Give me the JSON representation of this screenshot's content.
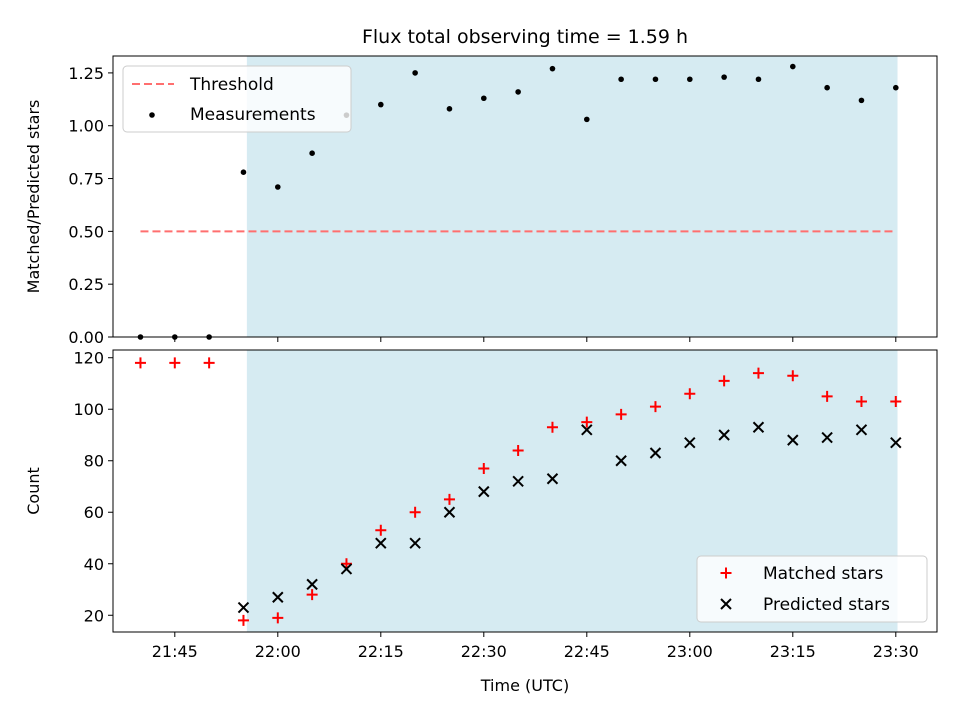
{
  "title": "Flux total observing time = 1.59 h",
  "colors": {
    "shade": "#add8e6",
    "threshold": "#ff6f6f",
    "matched": "#ff0000",
    "predicted": "#000000",
    "measurement": "#000000"
  },
  "chart_data": [
    {
      "type": "scatter",
      "ylabel": "Matched/Predicted stars",
      "ylim": [
        0,
        1.33
      ],
      "yticks": [
        "0.00",
        "0.25",
        "0.50",
        "0.75",
        "1.00",
        "1.25"
      ],
      "grid": false,
      "legend": {
        "placement": "top-left",
        "entries": [
          "Threshold",
          "Measurements"
        ]
      },
      "shaded_span": [
        "21:55:30",
        "23:30:15"
      ],
      "threshold": {
        "name": "Threshold",
        "value": 0.5,
        "x_range": [
          "21:40",
          "23:30"
        ]
      },
      "series": [
        {
          "name": "Measurements",
          "x": [
            "21:40",
            "21:45",
            "21:50",
            "21:55",
            "22:00",
            "22:05",
            "22:10",
            "22:15",
            "22:20",
            "22:25",
            "22:30",
            "22:35",
            "22:40",
            "22:45",
            "22:50",
            "22:55",
            "23:00",
            "23:05",
            "23:10",
            "23:15",
            "23:20",
            "23:25",
            "23:30"
          ],
          "y": [
            0.0,
            0.0,
            0.0,
            0.78,
            0.71,
            0.87,
            1.05,
            1.1,
            1.25,
            1.08,
            1.13,
            1.16,
            1.27,
            1.03,
            1.22,
            1.22,
            1.22,
            1.23,
            1.22,
            1.28,
            1.18,
            1.12,
            1.18
          ]
        }
      ]
    },
    {
      "type": "scatter",
      "ylabel": "Count",
      "xlabel": "Time (UTC)",
      "xticks": [
        "21:45",
        "22:00",
        "22:15",
        "22:30",
        "22:45",
        "23:00",
        "23:15",
        "23:30"
      ],
      "xlim": [
        "21:36",
        "23:36"
      ],
      "ylim": [
        13.5,
        123
      ],
      "yticks": [
        "20",
        "40",
        "60",
        "80",
        "100",
        "120"
      ],
      "grid": false,
      "legend": {
        "placement": "bottom-right",
        "entries": [
          "Matched stars",
          "Predicted stars"
        ]
      },
      "shaded_span": [
        "21:55:30",
        "23:30:15"
      ],
      "series": [
        {
          "name": "Matched stars",
          "x": [
            "21:40",
            "21:45",
            "21:50",
            "21:55",
            "22:00",
            "22:05",
            "22:10",
            "22:15",
            "22:20",
            "22:25",
            "22:30",
            "22:35",
            "22:40",
            "22:45",
            "22:50",
            "22:55",
            "23:00",
            "23:05",
            "23:10",
            "23:15",
            "23:20",
            "23:25",
            "23:30"
          ],
          "y": [
            118,
            118,
            118,
            18,
            19,
            28,
            40,
            53,
            60,
            65,
            77,
            84,
            93,
            95,
            98,
            101,
            106,
            111,
            114,
            113,
            105,
            103,
            103
          ]
        },
        {
          "name": "Predicted stars",
          "x": [
            "21:55",
            "22:00",
            "22:05",
            "22:10",
            "22:15",
            "22:20",
            "22:25",
            "22:30",
            "22:35",
            "22:40",
            "22:45",
            "22:50",
            "22:55",
            "23:00",
            "23:05",
            "23:10",
            "23:15",
            "23:20",
            "23:25",
            "23:30"
          ],
          "y": [
            23,
            27,
            32,
            38,
            48,
            48,
            60,
            68,
            72,
            73,
            92,
            80,
            83,
            87,
            90,
            93,
            88,
            89,
            92,
            87
          ]
        }
      ]
    }
  ]
}
